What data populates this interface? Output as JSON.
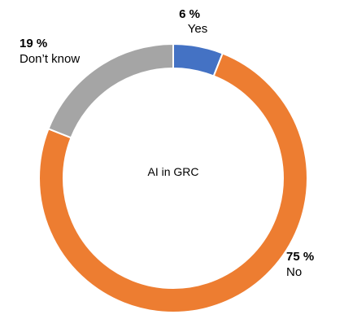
{
  "chart_data": {
    "type": "pie",
    "variant": "donut",
    "center_label": "AI in GRC",
    "slices": [
      {
        "label": "Yes",
        "value": 6,
        "value_label": "6 %",
        "color": "#4472C4"
      },
      {
        "label": "No",
        "value": 75,
        "value_label": "75 %",
        "color": "#ED7D31"
      },
      {
        "label": "Don’t know",
        "value": 19,
        "value_label": "19 %",
        "color": "#A5A5A5"
      }
    ],
    "start_angle_deg": 0,
    "direction": "clockwise",
    "legend": "none"
  }
}
